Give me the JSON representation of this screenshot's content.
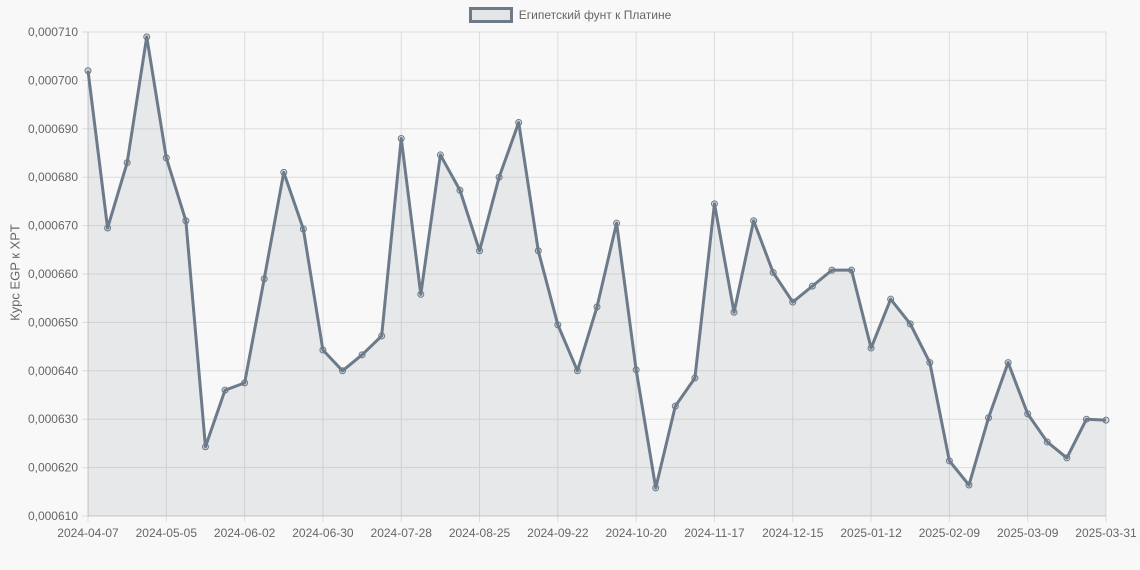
{
  "legend": {
    "label": "Египетский фунт к Платине",
    "color": "#6c7a89"
  },
  "chart_data": {
    "type": "line",
    "title": "",
    "xlabel": "",
    "ylabel": "Курс EGP к XPT",
    "ylim": [
      0.00061,
      0.00071
    ],
    "yticks": [
      "0,000710",
      "0,000700",
      "0,000690",
      "0,000680",
      "0,000670",
      "0,000660",
      "0,000650",
      "0,000640",
      "0,000630",
      "0,000620",
      "0,000610"
    ],
    "xtick_labels": [
      "2024-04-07",
      "2024-05-05",
      "2024-06-02",
      "2024-06-30",
      "2024-07-28",
      "2024-08-25",
      "2024-09-22",
      "2024-10-20",
      "2024-11-17",
      "2024-12-15",
      "2025-01-12",
      "2025-02-09",
      "2025-03-09",
      "2025-03-31"
    ],
    "xtick_indices": [
      0,
      4,
      8,
      12,
      16,
      20,
      24,
      28,
      32,
      36,
      40,
      44,
      48,
      52
    ],
    "grid": true,
    "legend_position": "top",
    "fill": true,
    "series": [
      {
        "name": "Египетский фунт к Платине",
        "color": "#6c7a89",
        "values": [
          0.000702,
          0.0006695,
          0.000683,
          0.000709,
          0.000684,
          0.000671,
          0.0006243,
          0.000636,
          0.0006375,
          0.000659,
          0.000681,
          0.0006693,
          0.0006443,
          0.00064,
          0.0006433,
          0.0006472,
          0.000688,
          0.0006558,
          0.0006846,
          0.0006773,
          0.0006648,
          0.00068,
          0.0006913,
          0.0006648,
          0.0006495,
          0.00064,
          0.0006532,
          0.0006705,
          0.0006402,
          0.0006158,
          0.0006327,
          0.0006385,
          0.0006745,
          0.0006521,
          0.000671,
          0.0006603,
          0.0006542,
          0.0006575,
          0.0006608,
          0.0006608,
          0.0006447,
          0.0006548,
          0.0006497,
          0.0006417,
          0.0006214,
          0.0006164,
          0.0006303,
          0.0006417,
          0.0006311,
          0.0006253,
          0.000622,
          0.00063,
          0.0006298
        ]
      }
    ]
  }
}
